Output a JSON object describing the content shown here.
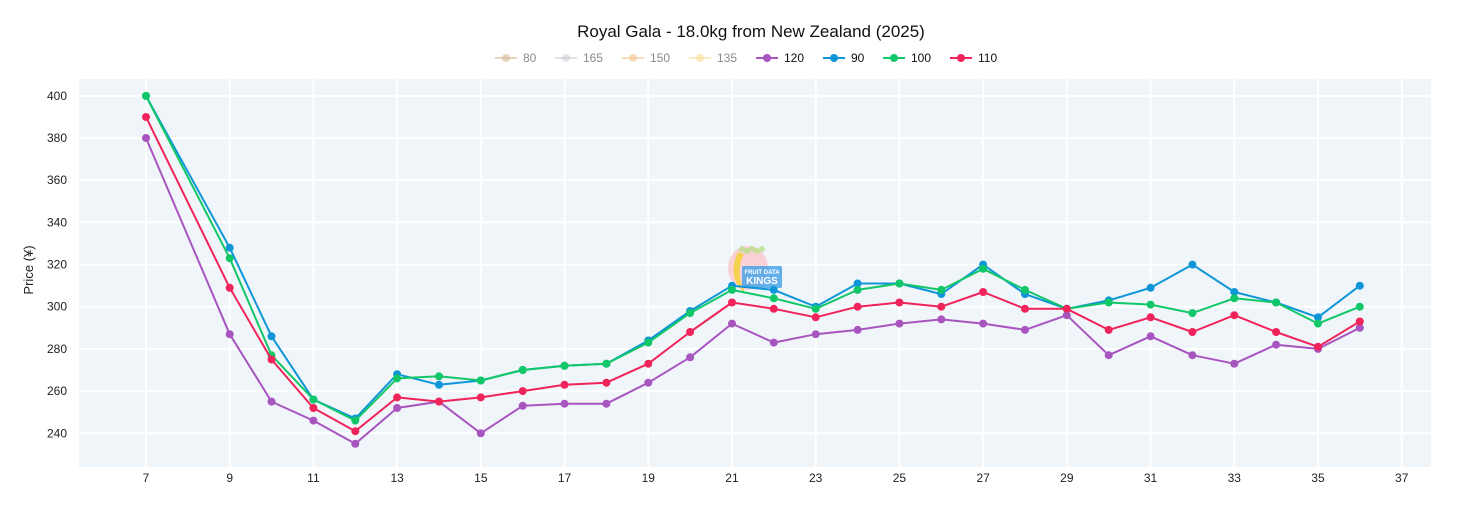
{
  "chart_data": {
    "type": "line",
    "title": "Royal Gala - 18.0kg from New Zealand (2025)",
    "xlabel": "",
    "ylabel": "Price (¥)",
    "xlim": [
      5.4,
      37.7
    ],
    "ylim": [
      224,
      408
    ],
    "x_ticks": [
      7,
      9,
      11,
      13,
      15,
      17,
      19,
      21,
      23,
      25,
      27,
      29,
      31,
      33,
      35,
      37
    ],
    "y_ticks": [
      240,
      260,
      280,
      300,
      320,
      340,
      360,
      380,
      400
    ],
    "grid": true,
    "legend_position": "top-center",
    "legend": [
      {
        "name": "80",
        "color": "#d2b48c",
        "active": false
      },
      {
        "name": "165",
        "color": "#c8cdd2",
        "active": false
      },
      {
        "name": "150",
        "color": "#f5c08a",
        "active": false
      },
      {
        "name": "135",
        "color": "#f8dc8a",
        "active": false
      },
      {
        "name": "120",
        "color": "#a855c0",
        "active": true
      },
      {
        "name": "90",
        "color": "#0f96d8",
        "active": true
      },
      {
        "name": "100",
        "color": "#12c768",
        "active": true
      },
      {
        "name": "110",
        "color": "#f0245a",
        "active": true
      }
    ],
    "x": [
      7,
      9,
      10,
      11,
      12,
      13,
      14,
      15,
      16,
      17,
      18,
      19,
      20,
      21,
      22,
      23,
      24,
      25,
      26,
      27,
      28,
      29,
      30,
      31,
      32,
      33,
      34,
      35,
      36
    ],
    "series": [
      {
        "name": "120",
        "color": "#a855c0",
        "values": [
          380,
          287,
          255,
          246,
          235,
          252,
          255,
          240,
          253,
          254,
          254,
          264,
          276,
          292,
          283,
          287,
          289,
          292,
          294,
          292,
          289,
          296,
          277,
          286,
          277,
          273,
          282,
          280,
          290
        ]
      },
      {
        "name": "90",
        "color": "#0f96d8",
        "values": [
          400,
          328,
          286,
          256,
          247,
          268,
          263,
          265,
          270,
          272,
          273,
          284,
          298,
          310,
          308,
          300,
          311,
          311,
          306,
          320,
          306,
          299,
          303,
          309,
          320,
          307,
          302,
          295,
          310
        ]
      },
      {
        "name": "100",
        "color": "#12c768",
        "values": [
          400,
          323,
          277,
          256,
          246,
          266,
          267,
          265,
          270,
          272,
          273,
          283,
          297,
          308,
          304,
          299,
          308,
          311,
          308,
          318,
          308,
          299,
          302,
          301,
          297,
          304,
          302,
          292,
          300
        ]
      },
      {
        "name": "110",
        "color": "#f0245a",
        "values": [
          390,
          309,
          275,
          252,
          241,
          257,
          255,
          257,
          260,
          263,
          264,
          273,
          288,
          302,
          299,
          295,
          300,
          302,
          300,
          307,
          299,
          299,
          289,
          295,
          288,
          296,
          288,
          281,
          293
        ]
      }
    ]
  },
  "watermark": {
    "line1": "FRUIT DATA",
    "line2": "KINGS"
  }
}
